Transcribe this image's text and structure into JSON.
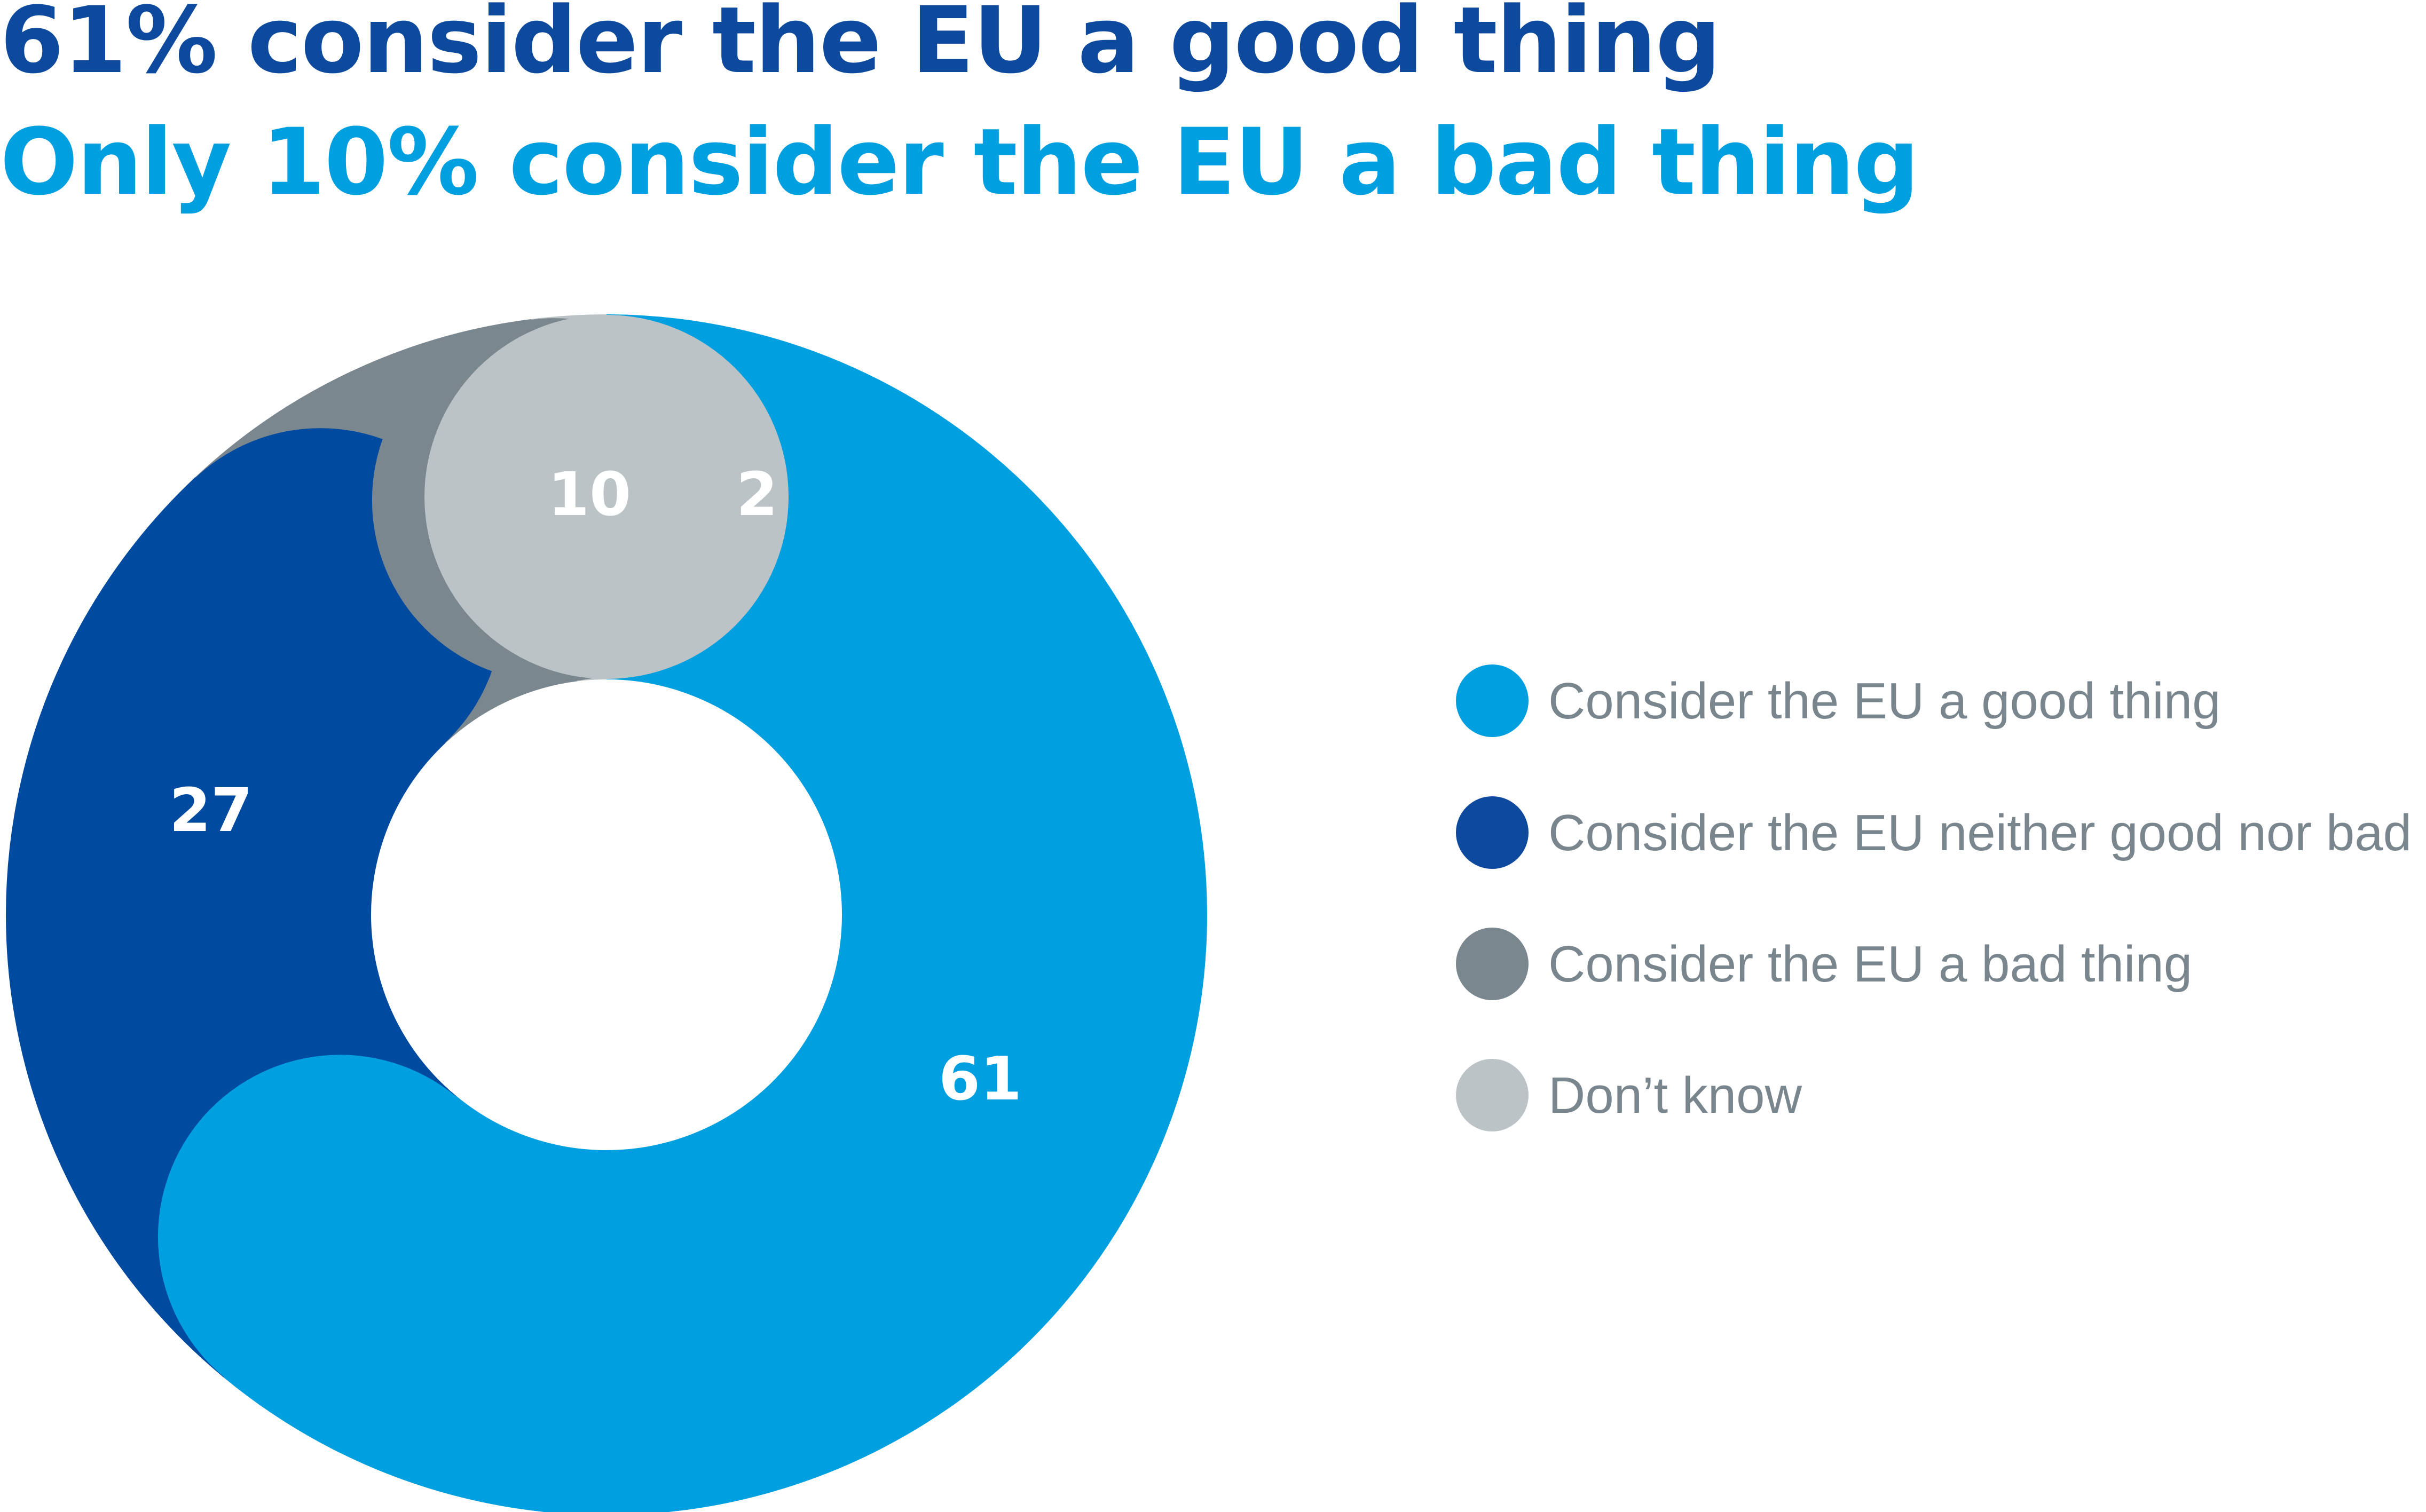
{
  "chart_data": {
    "type": "pie",
    "title": "61% consider the EU a good thing",
    "subtitle": "Only 10% consider the EU a bad thing",
    "categories": [
      "Consider the EU a good thing",
      "Consider the EU neither good nor bad",
      "Consider the EU a bad thing",
      "Don’t know"
    ],
    "values": [
      61,
      27,
      10,
      2
    ],
    "data_labels": [
      "61",
      "27",
      "10",
      "2"
    ],
    "colors": [
      "#009fe0",
      "#004a9f",
      "#7b878f",
      "#bcc3c6"
    ],
    "legend_colors": [
      "#009fe0",
      "#0d4a9e",
      "#7b878f",
      "#bcc3c6"
    ],
    "legend_position": "right",
    "donut": true
  }
}
